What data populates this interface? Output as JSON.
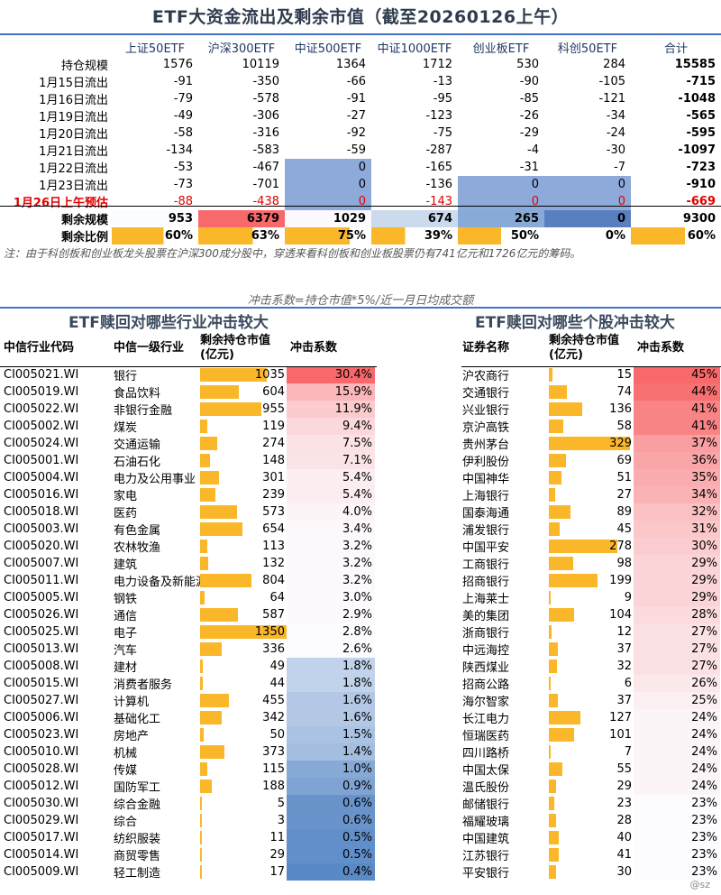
{
  "title": "ETF大资金流出及剩余市值（截至20260126上午）",
  "top_table": {
    "columns": [
      "上证50ETF",
      "沪深300ETF",
      "中证500ETF",
      "中证1000ETF",
      "创业板ETF",
      "科创50ETF",
      "合计"
    ],
    "rows": [
      {
        "label": "持仓规模",
        "values": [
          "1576",
          "10119",
          "1364",
          "1712",
          "530",
          "284",
          "15585"
        ]
      },
      {
        "label": "1月15日流出",
        "values": [
          "-91",
          "-350",
          "-66",
          "-13",
          "-90",
          "-105",
          "-715"
        ]
      },
      {
        "label": "1月16日流出",
        "values": [
          "-79",
          "-578",
          "-91",
          "-95",
          "-85",
          "-121",
          "-1048"
        ]
      },
      {
        "label": "1月19日流出",
        "values": [
          "-49",
          "-306",
          "-27",
          "-123",
          "-26",
          "-34",
          "-565"
        ]
      },
      {
        "label": "1月20日流出",
        "values": [
          "-58",
          "-316",
          "-92",
          "-75",
          "-29",
          "-24",
          "-595"
        ]
      },
      {
        "label": "1月21日流出",
        "values": [
          "-134",
          "-583",
          "-59",
          "-287",
          "-4",
          "-30",
          "-1097"
        ]
      },
      {
        "label": "1月22日流出",
        "values": [
          "-53",
          "-467",
          "0",
          "-165",
          "-31",
          "-7",
          "-723"
        ]
      },
      {
        "label": "1月23日流出",
        "values": [
          "-73",
          "-701",
          "0",
          "-136",
          "0",
          "0",
          "-910"
        ]
      },
      {
        "label": "1月26日上午预估",
        "values": [
          "-88",
          "-438",
          "0",
          "-143",
          "0",
          "0",
          "-669"
        ]
      },
      {
        "label": "剩余规模",
        "values": [
          "953",
          "6379",
          "1029",
          "674",
          "265",
          "0",
          "9300"
        ]
      },
      {
        "label": "剩余比例",
        "values": [
          "60%",
          "63%",
          "75%",
          "39%",
          "50%",
          "0%",
          "60%"
        ]
      }
    ],
    "remaining_ratio": [
      0.6,
      0.63,
      0.75,
      0.39,
      0.5,
      0.0,
      0.6
    ]
  },
  "note": "注：由于科创板和创业板龙头股票在沪深300成分股中，穿透来看科创板和创业板股票仍有741亿元和1726亿元的筹码。",
  "formula": "冲击系数=持仓市值*5%/近一月日均成交额",
  "industry": {
    "heading": "ETF赎回对哪些行业冲击较大",
    "col_code": "中信行业代码",
    "col_name": "中信一级行业",
    "col_value": "剩余持仓市值(亿元)",
    "col_impact": "冲击系数",
    "rows": [
      {
        "code": "CI005021.WI",
        "name": "银行",
        "value": 1035,
        "impact": "30.4%"
      },
      {
        "code": "CI005019.WI",
        "name": "食品饮料",
        "value": 604,
        "impact": "15.9%"
      },
      {
        "code": "CI005022.WI",
        "name": "非银行金融",
        "value": 955,
        "impact": "11.9%"
      },
      {
        "code": "CI005002.WI",
        "name": "煤炭",
        "value": 119,
        "impact": "9.4%"
      },
      {
        "code": "CI005024.WI",
        "name": "交通运输",
        "value": 274,
        "impact": "7.5%"
      },
      {
        "code": "CI005001.WI",
        "name": "石油石化",
        "value": 148,
        "impact": "7.1%"
      },
      {
        "code": "CI005004.WI",
        "name": "电力及公用事业",
        "value": 301,
        "impact": "5.4%"
      },
      {
        "code": "CI005016.WI",
        "name": "家电",
        "value": 239,
        "impact": "5.4%"
      },
      {
        "code": "CI005018.WI",
        "name": "医药",
        "value": 573,
        "impact": "4.0%"
      },
      {
        "code": "CI005003.WI",
        "name": "有色金属",
        "value": 654,
        "impact": "3.4%"
      },
      {
        "code": "CI005020.WI",
        "name": "农林牧渔",
        "value": 113,
        "impact": "3.2%"
      },
      {
        "code": "CI005007.WI",
        "name": "建筑",
        "value": 132,
        "impact": "3.2%"
      },
      {
        "code": "CI005011.WI",
        "name": "电力设备及新能源",
        "value": 804,
        "impact": "3.2%"
      },
      {
        "code": "CI005005.WI",
        "name": "钢铁",
        "value": 64,
        "impact": "3.0%"
      },
      {
        "code": "CI005026.WI",
        "name": "通信",
        "value": 587,
        "impact": "2.9%"
      },
      {
        "code": "CI005025.WI",
        "name": "电子",
        "value": 1350,
        "impact": "2.8%"
      },
      {
        "code": "CI005013.WI",
        "name": "汽车",
        "value": 336,
        "impact": "2.6%"
      },
      {
        "code": "CI005008.WI",
        "name": "建材",
        "value": 49,
        "impact": "1.8%"
      },
      {
        "code": "CI005015.WI",
        "name": "消费者服务",
        "value": 44,
        "impact": "1.8%"
      },
      {
        "code": "CI005027.WI",
        "name": "计算机",
        "value": 455,
        "impact": "1.6%"
      },
      {
        "code": "CI005006.WI",
        "name": "基础化工",
        "value": 342,
        "impact": "1.6%"
      },
      {
        "code": "CI005023.WI",
        "name": "房地产",
        "value": 50,
        "impact": "1.5%"
      },
      {
        "code": "CI005010.WI",
        "name": "机械",
        "value": 373,
        "impact": "1.4%"
      },
      {
        "code": "CI005028.WI",
        "name": "传媒",
        "value": 115,
        "impact": "1.0%"
      },
      {
        "code": "CI005012.WI",
        "name": "国防军工",
        "value": 188,
        "impact": "0.9%"
      },
      {
        "code": "CI005030.WI",
        "name": "综合金融",
        "value": 5,
        "impact": "0.6%"
      },
      {
        "code": "CI005029.WI",
        "name": "综合",
        "value": 3,
        "impact": "0.6%"
      },
      {
        "code": "CI005017.WI",
        "name": "纺织服装",
        "value": 11,
        "impact": "0.5%"
      },
      {
        "code": "CI005014.WI",
        "name": "商贸零售",
        "value": 29,
        "impact": "0.5%"
      },
      {
        "code": "CI005009.WI",
        "name": "轻工制造",
        "value": 17,
        "impact": "0.4%"
      }
    ]
  },
  "stocks": {
    "heading": "ETF赎回对哪些个股冲击较大",
    "col_name": "证券名称",
    "col_value": "剩余持仓市值(亿元)",
    "col_impact": "冲击系数",
    "rows": [
      {
        "name": "沪农商行",
        "value": 15,
        "impact": "45%"
      },
      {
        "name": "交通银行",
        "value": 74,
        "impact": "44%"
      },
      {
        "name": "兴业银行",
        "value": 136,
        "impact": "41%"
      },
      {
        "name": "京沪高铁",
        "value": 58,
        "impact": "41%"
      },
      {
        "name": "贵州茅台",
        "value": 329,
        "impact": "37%"
      },
      {
        "name": "伊利股份",
        "value": 69,
        "impact": "36%"
      },
      {
        "name": "中国神华",
        "value": 51,
        "impact": "35%"
      },
      {
        "name": "上海银行",
        "value": 27,
        "impact": "34%"
      },
      {
        "name": "国泰海通",
        "value": 89,
        "impact": "32%"
      },
      {
        "name": "浦发银行",
        "value": 45,
        "impact": "31%"
      },
      {
        "name": "中国平安",
        "value": 278,
        "impact": "30%"
      },
      {
        "name": "工商银行",
        "value": 98,
        "impact": "29%"
      },
      {
        "name": "招商银行",
        "value": 199,
        "impact": "29%"
      },
      {
        "name": "上海莱士",
        "value": 9,
        "impact": "29%"
      },
      {
        "name": "美的集团",
        "value": 104,
        "impact": "28%"
      },
      {
        "name": "浙商银行",
        "value": 12,
        "impact": "27%"
      },
      {
        "name": "中远海控",
        "value": 37,
        "impact": "27%"
      },
      {
        "name": "陕西煤业",
        "value": 32,
        "impact": "27%"
      },
      {
        "name": "招商公路",
        "value": 6,
        "impact": "26%"
      },
      {
        "name": "海尔智家",
        "value": 37,
        "impact": "25%"
      },
      {
        "name": "长江电力",
        "value": 127,
        "impact": "24%"
      },
      {
        "name": "恒瑞医药",
        "value": 101,
        "impact": "24%"
      },
      {
        "name": "四川路桥",
        "value": 7,
        "impact": "24%"
      },
      {
        "name": "中国太保",
        "value": 55,
        "impact": "24%"
      },
      {
        "name": "温氏股份",
        "value": 29,
        "impact": "24%"
      },
      {
        "name": "邮储银行",
        "value": 23,
        "impact": "23%"
      },
      {
        "name": "福耀玻璃",
        "value": 28,
        "impact": "23%"
      },
      {
        "name": "中国建筑",
        "value": 40,
        "impact": "23%"
      },
      {
        "name": "江苏银行",
        "value": 41,
        "impact": "23%"
      },
      {
        "name": "平安银行",
        "value": 30,
        "impact": "23%"
      }
    ]
  },
  "colors": {
    "bar": "#fbb72a",
    "red": "#f8696b",
    "blue": "#5a8ac6",
    "title": "#2f3c4f"
  },
  "watermark": "@sz",
  "chart_data": [
    {
      "type": "table",
      "title": "ETF大资金流出及剩余市值（截至20260126上午）",
      "columns": [
        "上证50ETF",
        "沪深300ETF",
        "中证500ETF",
        "中证1000ETF",
        "创业板ETF",
        "科创50ETF",
        "合计"
      ],
      "series": [
        {
          "name": "持仓规模",
          "values": [
            1576,
            10119,
            1364,
            1712,
            530,
            284,
            15585
          ]
        },
        {
          "name": "剩余规模",
          "values": [
            953,
            6379,
            1029,
            674,
            265,
            0,
            9300
          ]
        },
        {
          "name": "剩余比例",
          "values": [
            0.6,
            0.63,
            0.75,
            0.39,
            0.5,
            0.0,
            0.6
          ]
        }
      ]
    },
    {
      "type": "bar",
      "title": "ETF赎回对哪些行业冲击较大",
      "categories": [
        "银行",
        "食品饮料",
        "非银行金融",
        "煤炭",
        "交通运输",
        "石油石化",
        "电力及公用事业",
        "家电",
        "医药",
        "有色金属",
        "农林牧渔",
        "建筑",
        "电力设备及新能源",
        "钢铁",
        "通信",
        "电子",
        "汽车",
        "建材",
        "消费者服务",
        "计算机",
        "基础化工",
        "房地产",
        "机械",
        "传媒",
        "国防军工",
        "综合金融",
        "综合",
        "纺织服装",
        "商贸零售",
        "轻工制造"
      ],
      "series": [
        {
          "name": "剩余持仓市值(亿元)",
          "values": [
            1035,
            604,
            955,
            119,
            274,
            148,
            301,
            239,
            573,
            654,
            113,
            132,
            804,
            64,
            587,
            1350,
            336,
            49,
            44,
            455,
            342,
            50,
            373,
            115,
            188,
            5,
            3,
            11,
            29,
            17
          ]
        },
        {
          "name": "冲击系数",
          "values": [
            30.4,
            15.9,
            11.9,
            9.4,
            7.5,
            7.1,
            5.4,
            5.4,
            4.0,
            3.4,
            3.2,
            3.2,
            3.2,
            3.0,
            2.9,
            2.8,
            2.6,
            1.8,
            1.8,
            1.6,
            1.6,
            1.5,
            1.4,
            1.0,
            0.9,
            0.6,
            0.6,
            0.5,
            0.5,
            0.4
          ]
        }
      ]
    },
    {
      "type": "bar",
      "title": "ETF赎回对哪些个股冲击较大",
      "categories": [
        "沪农商行",
        "交通银行",
        "兴业银行",
        "京沪高铁",
        "贵州茅台",
        "伊利股份",
        "中国神华",
        "上海银行",
        "国泰海通",
        "浦发银行",
        "中国平安",
        "工商银行",
        "招商银行",
        "上海莱士",
        "美的集团",
        "浙商银行",
        "中远海控",
        "陕西煤业",
        "招商公路",
        "海尔智家",
        "长江电力",
        "恒瑞医药",
        "四川路桥",
        "中国太保",
        "温氏股份",
        "邮储银行",
        "福耀玻璃",
        "中国建筑",
        "江苏银行",
        "平安银行"
      ],
      "series": [
        {
          "name": "剩余持仓市值(亿元)",
          "values": [
            15,
            74,
            136,
            58,
            329,
            69,
            51,
            27,
            89,
            45,
            278,
            98,
            199,
            9,
            104,
            12,
            37,
            32,
            6,
            37,
            127,
            101,
            7,
            55,
            29,
            23,
            28,
            40,
            41,
            30
          ]
        },
        {
          "name": "冲击系数",
          "values": [
            45,
            44,
            41,
            41,
            37,
            36,
            35,
            34,
            32,
            31,
            30,
            29,
            29,
            29,
            28,
            27,
            27,
            27,
            26,
            25,
            24,
            24,
            24,
            24,
            24,
            23,
            23,
            23,
            23,
            23
          ]
        }
      ]
    }
  ]
}
